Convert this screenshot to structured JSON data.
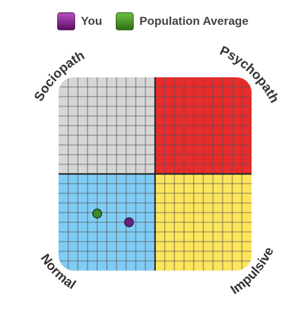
{
  "legend": {
    "items": [
      {
        "label": "You",
        "color": "#8a1f8f"
      },
      {
        "label": "Population Average",
        "color": "#4e9a2a"
      }
    ]
  },
  "colors": {
    "top_left": "#d6d6d6",
    "top_right": "#e82b2b",
    "bottom_left": "#7fccf5",
    "bottom_right": "#fde55c",
    "grid_line": "#555555",
    "axis_line": "#2a2a2a"
  },
  "chart_data": {
    "type": "scatter",
    "grid": true,
    "grid_divisions": 20,
    "xlim": [
      0,
      20
    ],
    "ylim": [
      0,
      20
    ],
    "quadrant_labels": {
      "top_left": "Sociopath",
      "top_right": "Psychopath",
      "bottom_left": "Normal",
      "bottom_right": "Impulsive"
    },
    "series": [
      {
        "name": "You",
        "color": "#6a2080",
        "x": 7.3,
        "y": 5.0
      },
      {
        "name": "Population Average",
        "color": "#3d8a26",
        "x": 4.0,
        "y": 5.9
      }
    ]
  }
}
